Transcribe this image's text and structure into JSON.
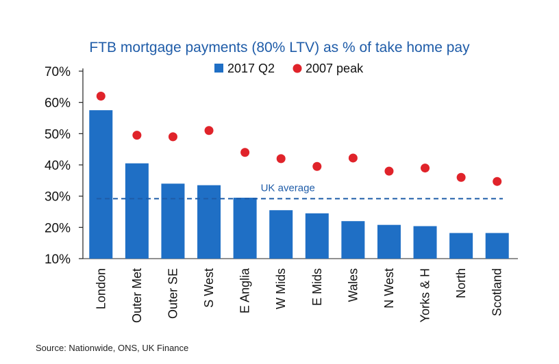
{
  "chart_data": {
    "type": "bar",
    "title": "FTB mortgage payments (80% LTV) as % of take home pay",
    "categories": [
      "London",
      "Outer Met",
      "Outer SE",
      "S West",
      "E Anglia",
      "W Mids",
      "E Mids",
      "Wales",
      "N West",
      "Yorks & H",
      "North",
      "Scotland"
    ],
    "series": [
      {
        "name": "2017 Q2",
        "type": "bar",
        "color": "#1f6fc5",
        "values": [
          57.5,
          40.5,
          34.0,
          33.5,
          29.5,
          25.5,
          24.5,
          22.0,
          20.8,
          20.4,
          18.2,
          18.2
        ]
      },
      {
        "name": "2007 peak",
        "type": "scatter",
        "color": "#e0232a",
        "values": [
          62.0,
          49.5,
          49.0,
          51.0,
          44.0,
          42.0,
          39.5,
          42.2,
          38.0,
          39.0,
          36.0,
          34.7
        ]
      }
    ],
    "reference_line": {
      "label": "UK average",
      "value": 29.2,
      "style": "dashed",
      "color": "#1f5ca8"
    },
    "ylim": [
      10,
      70
    ],
    "yticks": [
      "10%",
      "20%",
      "30%",
      "40%",
      "50%",
      "60%",
      "70%"
    ],
    "ytick_values": [
      10,
      20,
      30,
      40,
      50,
      60,
      70
    ],
    "xlabel": "",
    "ylabel": "",
    "legend_placement": "top-center",
    "grid": false
  },
  "source": "Source: Nationwide, ONS, UK Finance"
}
